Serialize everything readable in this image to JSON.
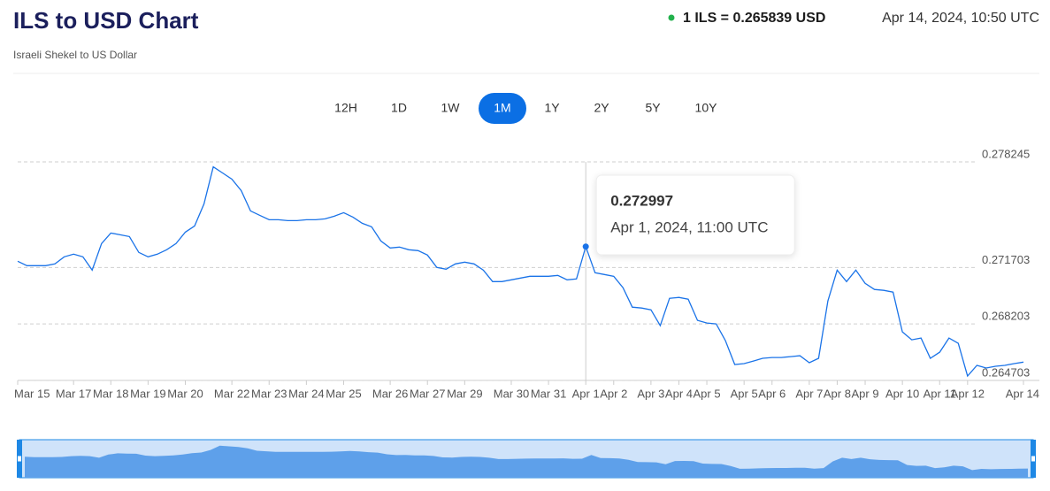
{
  "header": {
    "title": "ILS to USD Chart",
    "subtitle": "Israeli Shekel to US Dollar",
    "rate": "1 ILS = 0.265839 USD",
    "timestamp": "Apr 14, 2024, 10:50 UTC"
  },
  "range_buttons": {
    "labels": [
      "12H",
      "1D",
      "1W",
      "1M",
      "1Y",
      "2Y",
      "5Y",
      "10Y"
    ],
    "active": 3
  },
  "chart_data": {
    "type": "line",
    "categories": [
      "Mar 15",
      null,
      null,
      null,
      null,
      null,
      "Mar 17",
      null,
      null,
      null,
      "Mar 18",
      null,
      null,
      null,
      "Mar 19",
      null,
      null,
      null,
      "Mar 20",
      null,
      null,
      null,
      null,
      "Mar 22",
      null,
      null,
      null,
      "Mar 23",
      null,
      null,
      null,
      "Mar 24",
      null,
      null,
      null,
      "Mar 25",
      null,
      null,
      null,
      null,
      "Mar 26",
      null,
      null,
      null,
      "Mar 27",
      null,
      null,
      null,
      "Mar 29",
      null,
      null,
      null,
      null,
      "Mar 30",
      null,
      null,
      null,
      "Mar 31",
      null,
      null,
      null,
      "Apr 1",
      null,
      null,
      "Apr 2",
      null,
      null,
      null,
      "Apr 3",
      null,
      null,
      "Apr 4",
      null,
      null,
      "Apr 5",
      null,
      null,
      null,
      "Apr 5",
      null,
      null,
      "Apr 6",
      null,
      null,
      null,
      "Apr 7",
      null,
      null,
      "Apr 8",
      null,
      null,
      "Apr 9",
      null,
      null,
      null,
      "Apr 10",
      null,
      null,
      null,
      "Apr 11",
      null,
      null,
      "Apr 12",
      null,
      null,
      null,
      null,
      null,
      "Apr 14"
    ],
    "values": [
      0.272088,
      0.271814,
      0.271814,
      0.271814,
      0.271923,
      0.272361,
      0.272525,
      0.272361,
      0.271541,
      0.273182,
      0.273838,
      0.273729,
      0.273619,
      0.272635,
      0.272361,
      0.272525,
      0.272799,
      0.273182,
      0.273893,
      0.274276,
      0.275643,
      0.27794,
      0.277558,
      0.277175,
      0.276464,
      0.275205,
      0.274932,
      0.274658,
      0.274658,
      0.274604,
      0.274604,
      0.274658,
      0.274658,
      0.274713,
      0.274877,
      0.275096,
      0.274823,
      0.27444,
      0.274221,
      0.273346,
      0.272908,
      0.272963,
      0.272799,
      0.272744,
      0.27247,
      0.271705,
      0.271595,
      0.271923,
      0.272033,
      0.271923,
      0.271541,
      0.270829,
      0.270829,
      0.270939,
      0.271048,
      0.271158,
      0.271158,
      0.271158,
      0.271212,
      0.270939,
      0.270994,
      0.272997,
      0.271376,
      0.271267,
      0.271158,
      0.270447,
      0.269243,
      0.269188,
      0.269079,
      0.268094,
      0.26979,
      0.269845,
      0.269735,
      0.268423,
      0.268259,
      0.268204,
      0.267165,
      0.265688,
      0.265742,
      0.265906,
      0.266071,
      0.266125,
      0.266125,
      0.26618,
      0.266235,
      0.265797,
      0.266071,
      0.269626,
      0.271541,
      0.270829,
      0.271541,
      0.27072,
      0.270337,
      0.270282,
      0.270173,
      0.267712,
      0.267219,
      0.267329,
      0.266071,
      0.266453,
      0.267329,
      0.267,
      0.264977,
      0.265633,
      0.265469,
      0.265578,
      0.265633,
      0.265742,
      0.265839
    ],
    "color": "#1a73e8",
    "ylim": [
      0.264703,
      0.278245
    ],
    "yticks": [
      0.264703,
      0.268203,
      0.271703,
      0.278245
    ],
    "grid": true,
    "tooltip": {
      "value": 0.272997,
      "label": "Apr 1, 2024, 11:00 UTC"
    }
  }
}
